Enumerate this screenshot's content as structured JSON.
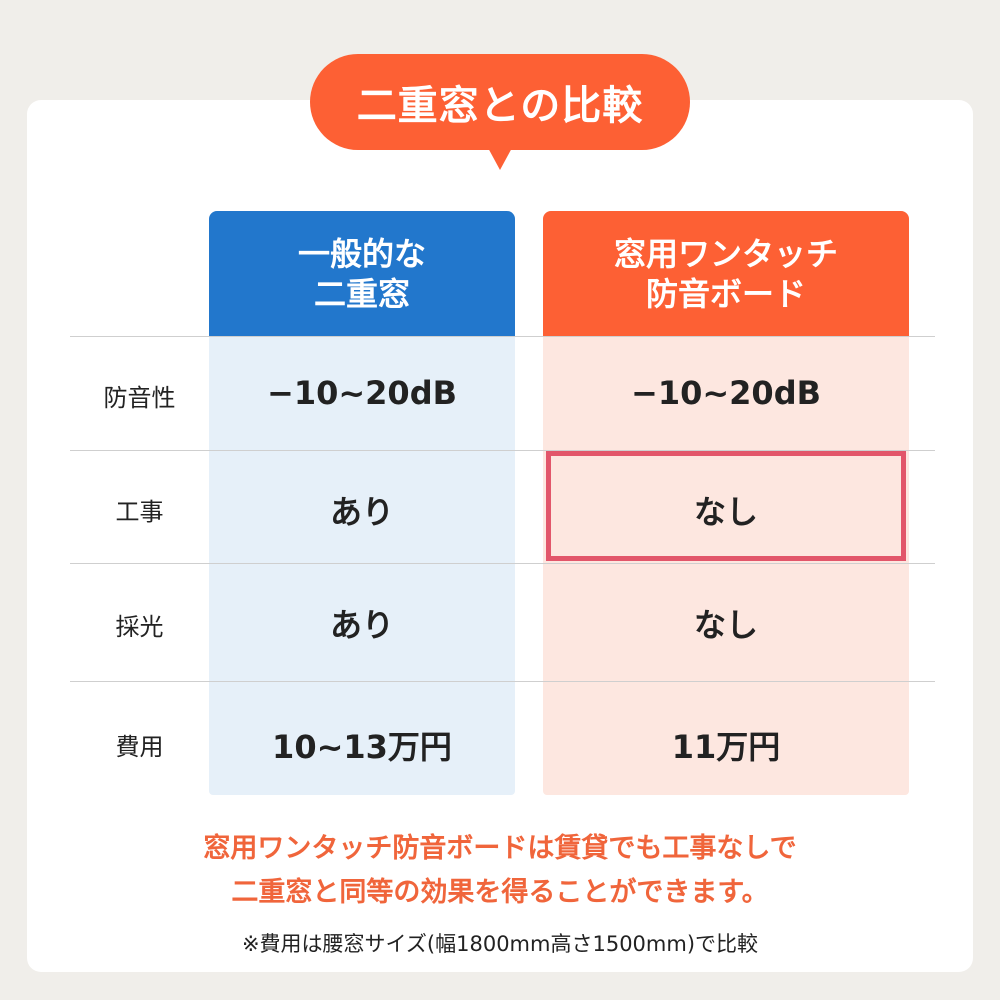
{
  "title": "二重窓との比較",
  "columns": [
    {
      "line1": "一般的な",
      "line2": "二重窓"
    },
    {
      "line1": "窓用ワンタッチ",
      "line2": "防音ボード"
    }
  ],
  "rows": [
    {
      "label": "防音性",
      "general": "−10~20dB",
      "board": "−10~20dB"
    },
    {
      "label": "工事",
      "general": "あり",
      "board": "なし"
    },
    {
      "label": "採光",
      "general": "あり",
      "board": "なし"
    },
    {
      "label": "費用",
      "general": "10~13万円",
      "board": "11万円"
    }
  ],
  "message": {
    "line1": "窓用ワンタッチ防音ボードは賃貸でも工事なしで",
    "line2": "二重窓と同等の効果を得ることができます。"
  },
  "note": "※費用は腰窓サイズ(幅1800mm高さ1500mm)で比較",
  "colors": {
    "blue": "#2277cc",
    "orange": "#fd6034",
    "highlight": "#e2566a"
  }
}
